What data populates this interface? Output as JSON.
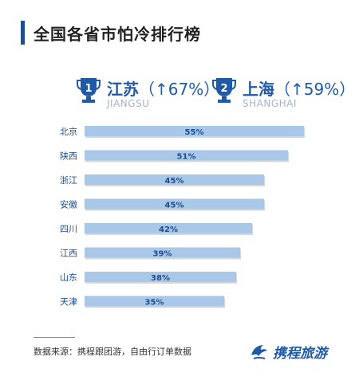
{
  "title": "全国各省市怕冷排行榜",
  "ranks": [
    {
      "num": "1",
      "name": "江苏",
      "change": "（↑67%）",
      "pinyin": "JIANGSU"
    },
    {
      "num": "2",
      "name": "上海",
      "change": "（↑59%）",
      "pinyin": "SHANGHAI"
    }
  ],
  "chart_data": {
    "type": "bar",
    "orientation": "horizontal",
    "categories": [
      "北京",
      "陕西",
      "浙江",
      "安徽",
      "四川",
      "江西",
      "山东",
      "天津"
    ],
    "values": [
      55,
      51,
      45,
      45,
      42,
      39,
      38,
      35
    ],
    "value_labels": [
      "55%",
      "51%",
      "45%",
      "45%",
      "42%",
      "39%",
      "38%",
      "35%"
    ],
    "bar_color": "#a9c8e8",
    "label_color": "#1f4e8c",
    "xlim": [
      0,
      56
    ]
  },
  "footer": {
    "source": "数据来源：携程跟团游，自由行订单数据",
    "logo": "携程旅游"
  }
}
